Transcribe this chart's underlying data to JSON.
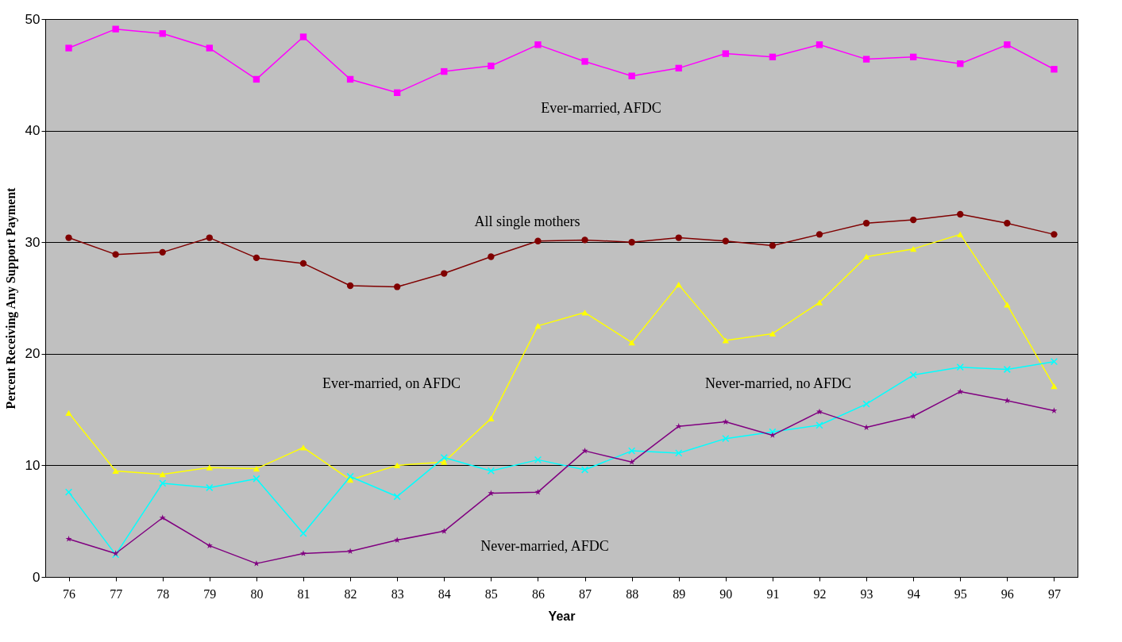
{
  "chart_data": {
    "type": "line",
    "xlabel": "Year",
    "ylabel": "Percent Receiving Any Support Payment",
    "categories": [
      "76",
      "77",
      "78",
      "79",
      "80",
      "81",
      "82",
      "83",
      "84",
      "85",
      "86",
      "87",
      "88",
      "89",
      "90",
      "91",
      "92",
      "93",
      "94",
      "95",
      "96",
      "97"
    ],
    "ylim": [
      0,
      50
    ],
    "yticks": [
      0,
      10,
      20,
      30,
      40,
      50
    ],
    "grid": "y",
    "legend": false,
    "series": [
      {
        "name": "Ever-married, AFDC",
        "color": "#ff00ff",
        "marker": "square",
        "values": [
          47.4,
          49.1,
          48.7,
          47.4,
          44.6,
          48.4,
          44.6,
          43.4,
          45.3,
          45.8,
          47.7,
          46.2,
          44.9,
          45.6,
          46.9,
          46.6,
          47.7,
          46.4,
          46.6,
          46.0,
          47.7,
          45.5
        ]
      },
      {
        "name": "All single mothers",
        "color": "#800000",
        "marker": "circle",
        "values": [
          30.4,
          28.9,
          29.1,
          30.4,
          28.6,
          28.1,
          26.1,
          26.0,
          27.2,
          28.7,
          30.1,
          30.2,
          30.0,
          30.4,
          30.1,
          29.7,
          30.7,
          31.7,
          32.0,
          32.5,
          31.7,
          30.7
        ]
      },
      {
        "name": "Ever-married, on AFDC",
        "color": "#ffff00",
        "marker": "triangle",
        "values": [
          14.7,
          9.5,
          9.2,
          9.8,
          9.7,
          11.6,
          8.7,
          10.0,
          10.3,
          14.2,
          22.5,
          23.7,
          21.0,
          26.2,
          21.2,
          21.8,
          24.6,
          28.7,
          29.4,
          30.7,
          24.4,
          17.1
        ]
      },
      {
        "name": "Never-married, no AFDC",
        "color": "#00ffff",
        "marker": "cross",
        "values": [
          7.6,
          2.0,
          8.4,
          8.0,
          8.8,
          3.9,
          9.0,
          7.2,
          10.7,
          9.5,
          10.5,
          9.6,
          11.3,
          11.1,
          12.4,
          13.0,
          13.6,
          15.5,
          18.1,
          18.8,
          18.6,
          19.3
        ]
      },
      {
        "name": "Never-married, AFDC",
        "color": "#800080",
        "marker": "star",
        "values": [
          3.4,
          2.1,
          5.3,
          2.8,
          1.2,
          2.1,
          2.3,
          3.3,
          4.1,
          7.5,
          7.6,
          11.3,
          10.3,
          13.5,
          13.9,
          12.7,
          14.8,
          13.4,
          14.4,
          16.6,
          15.8,
          14.9
        ]
      }
    ]
  }
}
